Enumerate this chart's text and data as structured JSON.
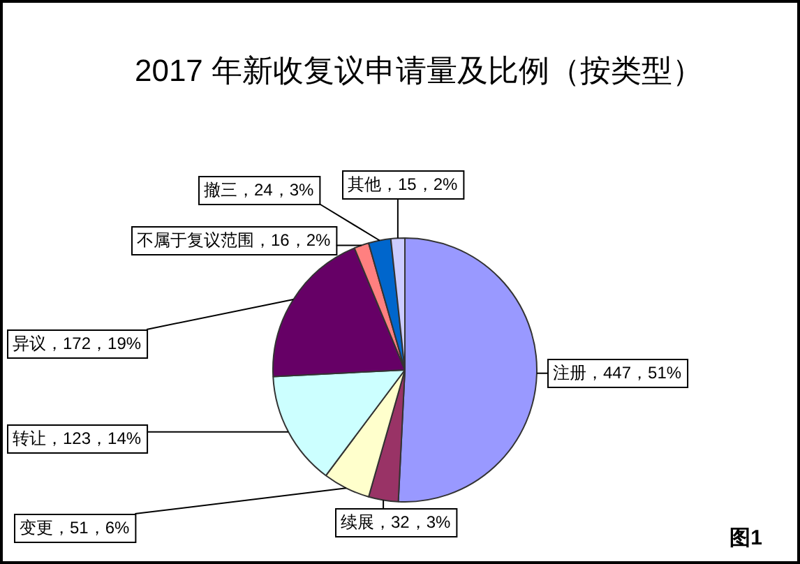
{
  "chart_data": {
    "type": "pie",
    "title": "2017 年新收复议申请量及比例（按类型）",
    "categories": [
      "注册",
      "续展",
      "变更",
      "转让",
      "异议",
      "不属于复议范围",
      "撤三",
      "其他"
    ],
    "values": [
      447,
      32,
      51,
      123,
      172,
      16,
      24,
      15
    ],
    "colors": [
      "#9999ff",
      "#993366",
      "#ffffcc",
      "#ccffff",
      "#660066",
      "#ff8080",
      "#0066cc",
      "#ccccff"
    ],
    "value_labels": [
      "，447，51%",
      "，32，3%",
      "，51，6%",
      "，123，14%",
      "，172，19%",
      "，16，2%",
      "，24，3%",
      "，15，2%"
    ],
    "annotations": [
      "图1"
    ]
  }
}
